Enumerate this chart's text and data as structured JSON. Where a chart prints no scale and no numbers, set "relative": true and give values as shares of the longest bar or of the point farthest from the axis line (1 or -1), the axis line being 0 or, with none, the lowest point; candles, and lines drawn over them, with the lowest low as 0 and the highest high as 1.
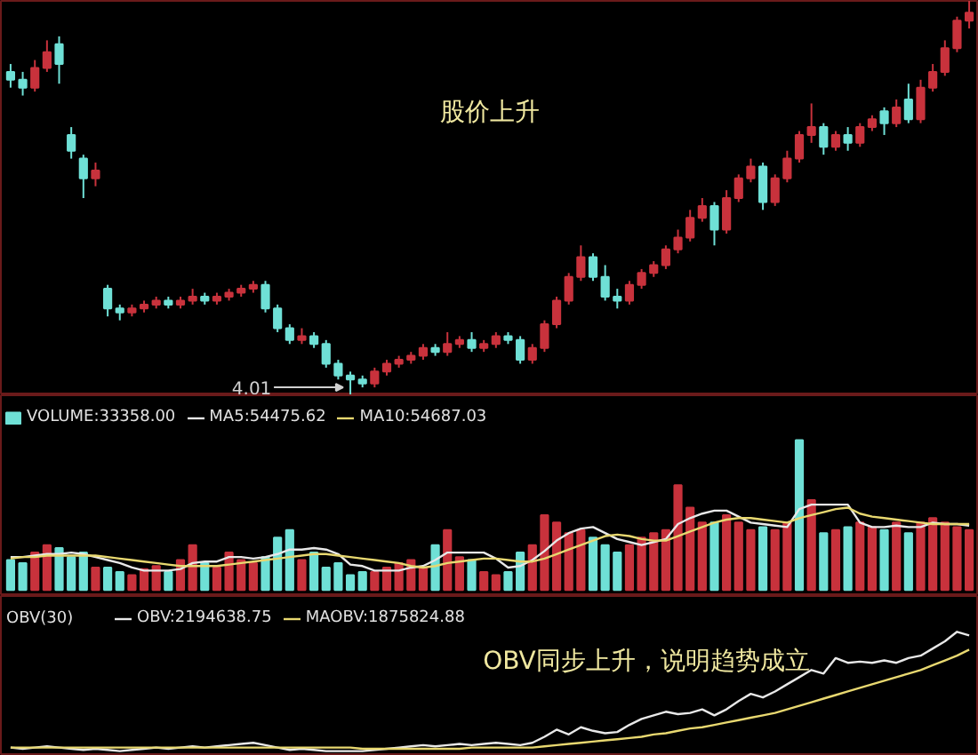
{
  "chart_data": [
    {
      "type": "candlestick",
      "relative": true,
      "categories": [
        null,
        null,
        null,
        null,
        null,
        null,
        null,
        null,
        null,
        null,
        null,
        null,
        null,
        null,
        null,
        null,
        null,
        null,
        null,
        null,
        null,
        null,
        null,
        null,
        null,
        null,
        null,
        null,
        null,
        null,
        null,
        null,
        null,
        null,
        null,
        null,
        null,
        null,
        null,
        null,
        null,
        null,
        null,
        null,
        null,
        null,
        null,
        null,
        null,
        null,
        null,
        null,
        null,
        null,
        null,
        null,
        null,
        null,
        null,
        null,
        null,
        null,
        null,
        null,
        null,
        null,
        null,
        null,
        null,
        null,
        null,
        null,
        null,
        null,
        null,
        null,
        null,
        null,
        null,
        null
      ],
      "ohlc": [
        [
          0.82,
          0.84,
          0.78,
          0.8
        ],
        [
          0.8,
          0.82,
          0.76,
          0.78
        ],
        [
          0.78,
          0.85,
          0.77,
          0.83
        ],
        [
          0.83,
          0.9,
          0.82,
          0.87
        ],
        [
          0.89,
          0.91,
          0.79,
          0.84
        ],
        [
          0.66,
          0.68,
          0.6,
          0.62
        ],
        [
          0.6,
          0.61,
          0.5,
          0.55
        ],
        [
          0.55,
          0.59,
          0.53,
          0.57
        ],
        [
          0.27,
          0.28,
          0.2,
          0.22
        ],
        [
          0.22,
          0.23,
          0.19,
          0.21
        ],
        [
          0.21,
          0.23,
          0.2,
          0.22
        ],
        [
          0.22,
          0.24,
          0.21,
          0.23
        ],
        [
          0.23,
          0.25,
          0.22,
          0.24
        ],
        [
          0.24,
          0.25,
          0.22,
          0.23
        ],
        [
          0.23,
          0.25,
          0.22,
          0.24
        ],
        [
          0.24,
          0.27,
          0.23,
          0.25
        ],
        [
          0.25,
          0.26,
          0.23,
          0.24
        ],
        [
          0.24,
          0.26,
          0.23,
          0.25
        ],
        [
          0.25,
          0.27,
          0.24,
          0.26
        ],
        [
          0.26,
          0.28,
          0.25,
          0.27
        ],
        [
          0.27,
          0.29,
          0.26,
          0.28
        ],
        [
          0.28,
          0.29,
          0.21,
          0.22
        ],
        [
          0.22,
          0.23,
          0.16,
          0.17
        ],
        [
          0.17,
          0.18,
          0.13,
          0.14
        ],
        [
          0.14,
          0.17,
          0.13,
          0.15
        ],
        [
          0.15,
          0.16,
          0.12,
          0.13
        ],
        [
          0.13,
          0.14,
          0.07,
          0.08
        ],
        [
          0.08,
          0.09,
          0.04,
          0.05
        ],
        [
          0.05,
          0.06,
          0.0,
          0.04
        ],
        [
          0.04,
          0.05,
          0.02,
          0.03
        ],
        [
          0.03,
          0.07,
          0.02,
          0.06
        ],
        [
          0.06,
          0.09,
          0.05,
          0.08
        ],
        [
          0.08,
          0.1,
          0.07,
          0.09
        ],
        [
          0.09,
          0.11,
          0.08,
          0.1
        ],
        [
          0.1,
          0.13,
          0.09,
          0.12
        ],
        [
          0.12,
          0.13,
          0.1,
          0.11
        ],
        [
          0.11,
          0.16,
          0.1,
          0.13
        ],
        [
          0.13,
          0.15,
          0.12,
          0.14
        ],
        [
          0.14,
          0.16,
          0.11,
          0.12
        ],
        [
          0.12,
          0.14,
          0.11,
          0.13
        ],
        [
          0.13,
          0.16,
          0.12,
          0.15
        ],
        [
          0.15,
          0.16,
          0.13,
          0.14
        ],
        [
          0.14,
          0.15,
          0.08,
          0.09
        ],
        [
          0.09,
          0.13,
          0.08,
          0.12
        ],
        [
          0.12,
          0.19,
          0.11,
          0.18
        ],
        [
          0.18,
          0.25,
          0.17,
          0.24
        ],
        [
          0.24,
          0.31,
          0.23,
          0.3
        ],
        [
          0.3,
          0.38,
          0.29,
          0.35
        ],
        [
          0.35,
          0.36,
          0.29,
          0.3
        ],
        [
          0.3,
          0.33,
          0.24,
          0.25
        ],
        [
          0.25,
          0.27,
          0.22,
          0.24
        ],
        [
          0.24,
          0.29,
          0.23,
          0.28
        ],
        [
          0.28,
          0.32,
          0.27,
          0.31
        ],
        [
          0.31,
          0.34,
          0.3,
          0.33
        ],
        [
          0.33,
          0.38,
          0.32,
          0.37
        ],
        [
          0.37,
          0.42,
          0.36,
          0.4
        ],
        [
          0.4,
          0.47,
          0.39,
          0.45
        ],
        [
          0.45,
          0.5,
          0.44,
          0.48
        ],
        [
          0.48,
          0.49,
          0.38,
          0.42
        ],
        [
          0.42,
          0.52,
          0.41,
          0.5
        ],
        [
          0.5,
          0.56,
          0.49,
          0.55
        ],
        [
          0.55,
          0.6,
          0.54,
          0.58
        ],
        [
          0.58,
          0.59,
          0.47,
          0.49
        ],
        [
          0.49,
          0.56,
          0.48,
          0.55
        ],
        [
          0.55,
          0.62,
          0.54,
          0.6
        ],
        [
          0.6,
          0.67,
          0.59,
          0.66
        ],
        [
          0.66,
          0.74,
          0.64,
          0.68
        ],
        [
          0.68,
          0.69,
          0.61,
          0.63
        ],
        [
          0.63,
          0.67,
          0.62,
          0.66
        ],
        [
          0.66,
          0.68,
          0.62,
          0.64
        ],
        [
          0.64,
          0.69,
          0.63,
          0.68
        ],
        [
          0.68,
          0.71,
          0.67,
          0.7
        ],
        [
          0.72,
          0.73,
          0.66,
          0.69
        ],
        [
          0.69,
          0.75,
          0.68,
          0.73
        ],
        [
          0.75,
          0.79,
          0.69,
          0.7
        ],
        [
          0.7,
          0.8,
          0.69,
          0.78
        ],
        [
          0.78,
          0.84,
          0.77,
          0.82
        ],
        [
          0.82,
          0.9,
          0.81,
          0.88
        ],
        [
          0.88,
          0.96,
          0.87,
          0.95
        ],
        [
          0.95,
          1.0,
          0.93,
          0.97
        ]
      ],
      "colors": [
        "#6fe0d6",
        "#6fe0d6",
        "#c8323c",
        "#c8323c",
        "#6fe0d6",
        "#6fe0d6",
        "#6fe0d6",
        "#c8323c",
        "#6fe0d6",
        "#6fe0d6",
        "#c8323c",
        "#c8323c",
        "#c8323c",
        "#6fe0d6",
        "#c8323c",
        "#c8323c",
        "#6fe0d6",
        "#c8323c",
        "#c8323c",
        "#c8323c",
        "#c8323c",
        "#6fe0d6",
        "#6fe0d6",
        "#6fe0d6",
        "#c8323c",
        "#6fe0d6",
        "#6fe0d6",
        "#6fe0d6",
        "#6fe0d6",
        "#6fe0d6",
        "#c8323c",
        "#c8323c",
        "#c8323c",
        "#c8323c",
        "#c8323c",
        "#6fe0d6",
        "#c8323c",
        "#c8323c",
        "#6fe0d6",
        "#c8323c",
        "#c8323c",
        "#6fe0d6",
        "#6fe0d6",
        "#c8323c",
        "#c8323c",
        "#c8323c",
        "#c8323c",
        "#c8323c",
        "#6fe0d6",
        "#6fe0d6",
        "#6fe0d6",
        "#c8323c",
        "#c8323c",
        "#c8323c",
        "#c8323c",
        "#c8323c",
        "#c8323c",
        "#c8323c",
        "#6fe0d6",
        "#c8323c",
        "#c8323c",
        "#c8323c",
        "#6fe0d6",
        "#c8323c",
        "#c8323c",
        "#c8323c",
        "#c8323c",
        "#6fe0d6",
        "#c8323c",
        "#6fe0d6",
        "#c8323c",
        "#c8323c",
        "#6fe0d6",
        "#c8323c",
        "#6fe0d6",
        "#c8323c",
        "#c8323c",
        "#c8323c",
        "#c8323c",
        "#c8323c"
      ],
      "annotations": [
        "股价上升",
        "4.01"
      ]
    },
    {
      "type": "bar",
      "relative": true,
      "categories": [
        null,
        null,
        null,
        null,
        null,
        null,
        null,
        null,
        null,
        null,
        null,
        null,
        null,
        null,
        null,
        null,
        null,
        null,
        null,
        null,
        null,
        null,
        null,
        null,
        null,
        null,
        null,
        null,
        null,
        null,
        null,
        null,
        null,
        null,
        null,
        null,
        null,
        null,
        null,
        null,
        null,
        null,
        null,
        null,
        null,
        null,
        null,
        null,
        null,
        null,
        null,
        null,
        null,
        null,
        null,
        null,
        null,
        null,
        null,
        null,
        null,
        null,
        null,
        null,
        null,
        null,
        null,
        null,
        null,
        null,
        null,
        null,
        null,
        null,
        null,
        null,
        null,
        null,
        null,
        null
      ],
      "legend": "top left",
      "series": [
        {
          "name": "VOLUME:33358.00",
          "type": "bar",
          "colors": [
            "#6fe0d6",
            "#6fe0d6",
            "#c8323c",
            "#c8323c",
            "#6fe0d6",
            "#6fe0d6",
            "#6fe0d6",
            "#c8323c",
            "#6fe0d6",
            "#6fe0d6",
            "#c8323c",
            "#c8323c",
            "#c8323c",
            "#6fe0d6",
            "#c8323c",
            "#c8323c",
            "#6fe0d6",
            "#c8323c",
            "#c8323c",
            "#c8323c",
            "#c8323c",
            "#6fe0d6",
            "#6fe0d6",
            "#6fe0d6",
            "#c8323c",
            "#6fe0d6",
            "#6fe0d6",
            "#6fe0d6",
            "#6fe0d6",
            "#6fe0d6",
            "#c8323c",
            "#c8323c",
            "#c8323c",
            "#c8323c",
            "#c8323c",
            "#6fe0d6",
            "#c8323c",
            "#c8323c",
            "#6fe0d6",
            "#c8323c",
            "#c8323c",
            "#6fe0d6",
            "#6fe0d6",
            "#c8323c",
            "#c8323c",
            "#c8323c",
            "#c8323c",
            "#c8323c",
            "#6fe0d6",
            "#6fe0d6",
            "#6fe0d6",
            "#c8323c",
            "#c8323c",
            "#c8323c",
            "#c8323c",
            "#c8323c",
            "#c8323c",
            "#c8323c",
            "#6fe0d6",
            "#c8323c",
            "#c8323c",
            "#c8323c",
            "#6fe0d6",
            "#c8323c",
            "#c8323c",
            "#6fe0d6",
            "#c8323c",
            "#6fe0d6",
            "#c8323c",
            "#6fe0d6",
            "#c8323c",
            "#c8323c",
            "#6fe0d6",
            "#c8323c",
            "#6fe0d6",
            "#c8323c",
            "#c8323c",
            "#c8323c",
            "#c8323c",
            "#c8323c"
          ],
          "values": [
            0.2,
            0.18,
            0.25,
            0.3,
            0.28,
            0.22,
            0.25,
            0.15,
            0.15,
            0.12,
            0.1,
            0.14,
            0.16,
            0.12,
            0.2,
            0.3,
            0.18,
            0.15,
            0.25,
            0.2,
            0.18,
            0.22,
            0.35,
            0.4,
            0.2,
            0.25,
            0.15,
            0.18,
            0.1,
            0.12,
            0.12,
            0.15,
            0.18,
            0.2,
            0.15,
            0.3,
            0.4,
            0.22,
            0.2,
            0.12,
            0.1,
            0.12,
            0.25,
            0.3,
            0.5,
            0.45,
            0.38,
            0.4,
            0.35,
            0.3,
            0.25,
            0.3,
            0.35,
            0.38,
            0.4,
            0.7,
            0.55,
            0.45,
            0.45,
            0.5,
            0.45,
            0.4,
            0.42,
            0.4,
            0.45,
            1.0,
            0.6,
            0.38,
            0.4,
            0.42,
            0.45,
            0.42,
            0.4,
            0.45,
            0.38,
            0.45,
            0.48,
            0.45,
            0.42,
            0.4
          ]
        },
        {
          "name": "MA5:54475.62",
          "type": "line",
          "color": "#e8e8e8",
          "values": [
            0.22,
            0.22,
            0.23,
            0.24,
            0.24,
            0.25,
            0.24,
            0.22,
            0.2,
            0.18,
            0.15,
            0.13,
            0.13,
            0.13,
            0.14,
            0.18,
            0.19,
            0.19,
            0.22,
            0.22,
            0.21,
            0.22,
            0.24,
            0.27,
            0.27,
            0.28,
            0.27,
            0.24,
            0.17,
            0.16,
            0.13,
            0.13,
            0.13,
            0.15,
            0.16,
            0.2,
            0.25,
            0.25,
            0.25,
            0.25,
            0.21,
            0.15,
            0.16,
            0.2,
            0.26,
            0.33,
            0.38,
            0.41,
            0.42,
            0.38,
            0.34,
            0.32,
            0.3,
            0.32,
            0.34,
            0.44,
            0.48,
            0.51,
            0.53,
            0.53,
            0.49,
            0.45,
            0.44,
            0.43,
            0.42,
            0.54,
            0.57,
            0.57,
            0.57,
            0.57,
            0.45,
            0.42,
            0.42,
            0.43,
            0.42,
            0.42,
            0.45,
            0.44,
            0.44,
            0.43
          ]
        },
        {
          "name": "MA10:54687.03",
          "type": "line",
          "color": "#e8d870",
          "values": [
            0.21,
            0.22,
            0.22,
            0.23,
            0.23,
            0.23,
            0.23,
            0.23,
            0.22,
            0.21,
            0.2,
            0.19,
            0.18,
            0.17,
            0.16,
            0.16,
            0.16,
            0.16,
            0.17,
            0.18,
            0.19,
            0.2,
            0.21,
            0.22,
            0.23,
            0.24,
            0.24,
            0.23,
            0.22,
            0.21,
            0.2,
            0.19,
            0.18,
            0.16,
            0.15,
            0.16,
            0.18,
            0.19,
            0.2,
            0.21,
            0.21,
            0.2,
            0.19,
            0.19,
            0.21,
            0.24,
            0.27,
            0.3,
            0.33,
            0.36,
            0.37,
            0.36,
            0.34,
            0.33,
            0.33,
            0.36,
            0.39,
            0.42,
            0.45,
            0.47,
            0.48,
            0.48,
            0.47,
            0.46,
            0.45,
            0.48,
            0.5,
            0.52,
            0.54,
            0.55,
            0.51,
            0.49,
            0.48,
            0.47,
            0.46,
            0.45,
            0.44,
            0.44,
            0.44,
            0.44
          ]
        }
      ]
    },
    {
      "type": "line",
      "relative": true,
      "title": "OBV(30)",
      "categories": [
        null,
        null,
        null,
        null,
        null,
        null,
        null,
        null,
        null,
        null,
        null,
        null,
        null,
        null,
        null,
        null,
        null,
        null,
        null,
        null,
        null,
        null,
        null,
        null,
        null,
        null,
        null,
        null,
        null,
        null,
        null,
        null,
        null,
        null,
        null,
        null,
        null,
        null,
        null,
        null,
        null,
        null,
        null,
        null,
        null,
        null,
        null,
        null,
        null,
        null,
        null,
        null,
        null,
        null,
        null,
        null,
        null,
        null,
        null,
        null,
        null,
        null,
        null,
        null,
        null,
        null,
        null,
        null,
        null,
        null,
        null,
        null,
        null,
        null,
        null,
        null,
        null,
        null,
        null,
        null
      ],
      "legend": "top left",
      "series": [
        {
          "name": "OBV:2194638.75",
          "color": "#e8e8e8",
          "values": [
            0.03,
            0.02,
            0.03,
            0.04,
            0.03,
            0.02,
            0.01,
            0.02,
            0.01,
            0.0,
            0.01,
            0.02,
            0.03,
            0.02,
            0.03,
            0.04,
            0.03,
            0.04,
            0.05,
            0.06,
            0.07,
            0.05,
            0.03,
            0.01,
            0.02,
            0.01,
            0.0,
            0.0,
            0.0,
            0.0,
            0.01,
            0.02,
            0.03,
            0.04,
            0.05,
            0.04,
            0.05,
            0.06,
            0.05,
            0.06,
            0.07,
            0.06,
            0.05,
            0.07,
            0.12,
            0.18,
            0.14,
            0.2,
            0.17,
            0.15,
            0.16,
            0.22,
            0.27,
            0.3,
            0.33,
            0.31,
            0.32,
            0.35,
            0.3,
            0.35,
            0.42,
            0.48,
            0.45,
            0.5,
            0.56,
            0.62,
            0.68,
            0.65,
            0.78,
            0.74,
            0.75,
            0.74,
            0.76,
            0.74,
            0.78,
            0.8,
            0.86,
            0.92,
            1.0,
            0.97
          ]
        },
        {
          "name": "MAOBV:1875824.88",
          "color": "#e8d870",
          "values": [
            0.03,
            0.03,
            0.03,
            0.03,
            0.03,
            0.03,
            0.03,
            0.03,
            0.03,
            0.03,
            0.03,
            0.03,
            0.03,
            0.03,
            0.03,
            0.03,
            0.03,
            0.03,
            0.03,
            0.03,
            0.03,
            0.03,
            0.03,
            0.03,
            0.03,
            0.03,
            0.03,
            0.03,
            0.03,
            0.02,
            0.02,
            0.02,
            0.02,
            0.02,
            0.02,
            0.02,
            0.02,
            0.02,
            0.03,
            0.03,
            0.03,
            0.03,
            0.03,
            0.03,
            0.04,
            0.05,
            0.06,
            0.07,
            0.08,
            0.09,
            0.1,
            0.11,
            0.12,
            0.14,
            0.15,
            0.17,
            0.19,
            0.2,
            0.22,
            0.24,
            0.26,
            0.28,
            0.3,
            0.32,
            0.35,
            0.38,
            0.41,
            0.44,
            0.47,
            0.5,
            0.53,
            0.56,
            0.59,
            0.62,
            0.65,
            0.68,
            0.72,
            0.76,
            0.8,
            0.85
          ]
        }
      ],
      "annotations": [
        "OBV同步上升，说明趋势成立"
      ]
    }
  ]
}
